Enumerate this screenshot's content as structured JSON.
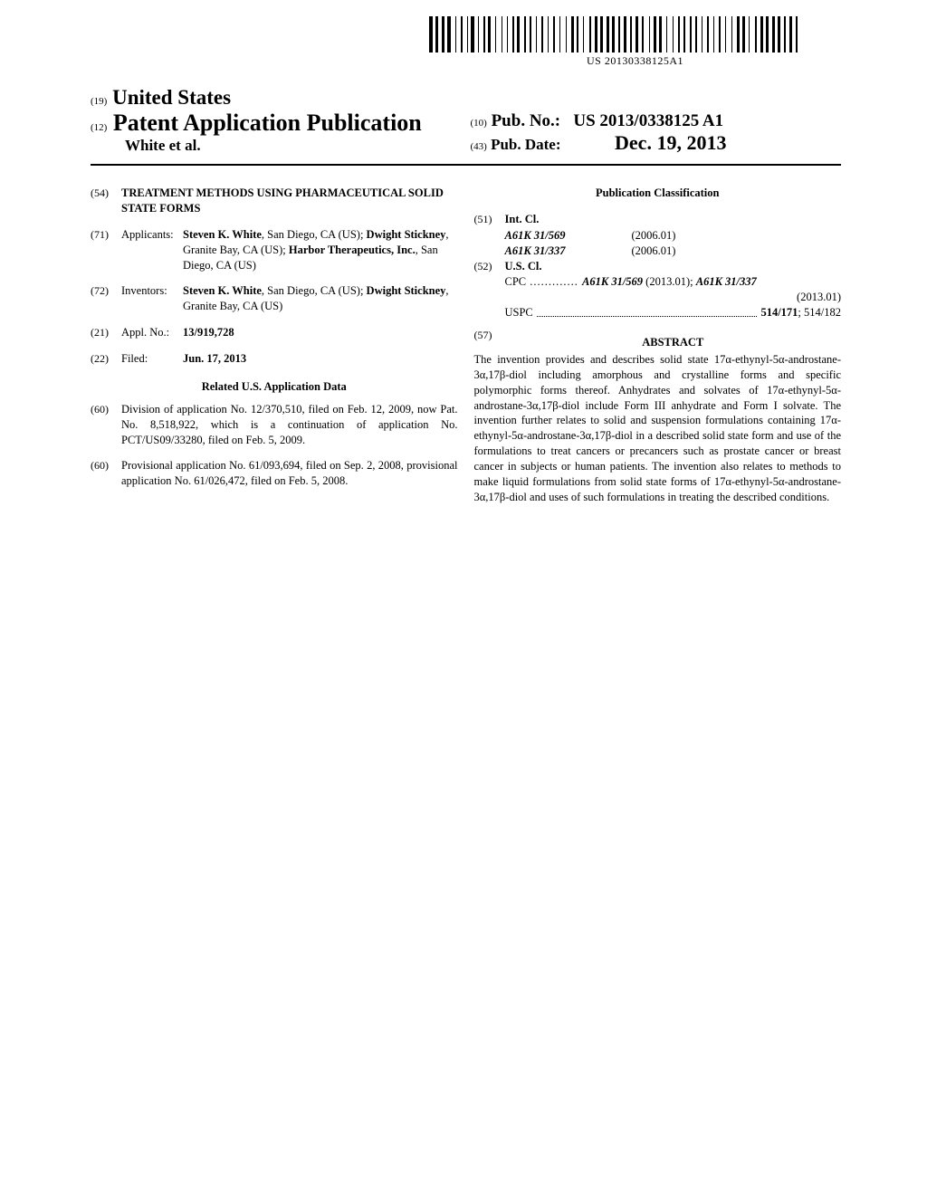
{
  "barcode_text": "US 20130338125A1",
  "header": {
    "code19": "(19)",
    "country": "United States",
    "code12": "(12)",
    "pub_type": "Patent Application Publication",
    "authors": "White et al.",
    "code10": "(10)",
    "pubno_label": "Pub. No.:",
    "pubno": "US 2013/0338125 A1",
    "code43": "(43)",
    "pubdate_label": "Pub. Date:",
    "pubdate": "Dec. 19, 2013"
  },
  "left": {
    "f54": {
      "code": "(54)",
      "title": "TREATMENT METHODS USING PHARMACEUTICAL SOLID STATE FORMS"
    },
    "f71": {
      "code": "(71)",
      "label": "Applicants:",
      "value_html": "<b>Steven K. White</b>, San Diego, CA (US); <b>Dwight Stickney</b>, Granite Bay, CA (US); <b>Harbor Therapeutics, Inc.</b>, San Diego, CA (US)"
    },
    "f72": {
      "code": "(72)",
      "label": "Inventors:",
      "value_html": "<b>Steven K. White</b>, San Diego, CA (US); <b>Dwight Stickney</b>, Granite Bay, CA (US)"
    },
    "f21": {
      "code": "(21)",
      "label": "Appl. No.:",
      "value": "13/919,728"
    },
    "f22": {
      "code": "(22)",
      "label": "Filed:",
      "value": "Jun. 17, 2013"
    },
    "related_head": "Related U.S. Application Data",
    "f60a": {
      "code": "(60)",
      "text": "Division of application No. 12/370,510, filed on Feb. 12, 2009, now Pat. No. 8,518,922, which is a continuation of application No. PCT/US09/33280, filed on Feb. 5, 2009."
    },
    "f60b": {
      "code": "(60)",
      "text": "Provisional application No. 61/093,694, filed on Sep. 2, 2008, provisional application No. 61/026,472, filed on Feb. 5, 2008."
    }
  },
  "right": {
    "class_head": "Publication Classification",
    "f51": {
      "code": "(51)",
      "label": "Int. Cl."
    },
    "intcl": [
      {
        "class": "A61K 31/569",
        "year": "(2006.01)"
      },
      {
        "class": "A61K 31/337",
        "year": "(2006.01)"
      }
    ],
    "f52": {
      "code": "(52)",
      "label": "U.S. Cl."
    },
    "cpc": {
      "label": "CPC",
      "value": "A61K 31/569 (2013.01); A61K 31/337 (2013.01)"
    },
    "uspc": {
      "label": "USPC",
      "val1": "514/171",
      "val2": "; 514/182"
    },
    "f57": {
      "code": "(57)",
      "label": "ABSTRACT"
    },
    "abstract": "The invention provides and describes solid state 17α-ethynyl-5α-androstane-3α,17β-diol including amorphous and crystalline forms and specific polymorphic forms thereof. Anhydrates and solvates of 17α-ethynyl-5α-androstane-3α,17β-diol include Form III anhydrate and Form I solvate. The invention further relates to solid and suspension formulations containing 17α-ethynyl-5α-androstane-3α,17β-diol in a described solid state form and use of the formulations to treat cancers or precancers such as prostate cancer or breast cancer in subjects or human patients. The invention also relates to methods to make liquid formulations from solid state forms of 17α-ethynyl-5α-androstane-3α,17β-diol and uses of such formulations in treating the described conditions."
  }
}
